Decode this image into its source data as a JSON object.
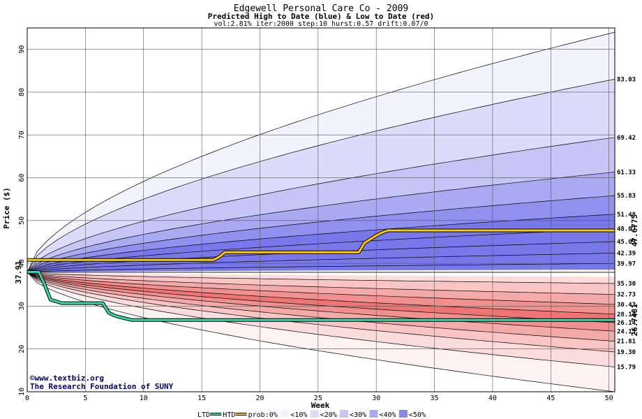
{
  "colors": {
    "blue_outer": "#f3f3fd",
    "blue_bands": [
      "#dcdcfa",
      "#c5c5f6",
      "#aaaaf2",
      "#9090ee",
      "#7878ea"
    ],
    "red_outer": "#fdf1f1",
    "red_bands": [
      "#fbdcdc",
      "#f8c4c4",
      "#f5aaaa",
      "#f29090",
      "#ef7474"
    ],
    "grid": "#555555",
    "htd_line": "#ffcc00",
    "ltd_line": "#33ddaa",
    "current_label": "#006600",
    "htd_label": "#8a6a00",
    "ltd_label": "#1aa37a",
    "credit": "#000066"
  },
  "chart_data": {
    "type": "area",
    "title": "Edgewell Personal Care Co - 2009",
    "subtitle": "Predicted High to Date (blue) &  Low to Date (red)",
    "params": "vol:2.81% iter:2000 step:10 hurst:0.57 drift:0.07/0",
    "xlabel": "Week",
    "ylabel": "Price ($)",
    "xlim": [
      0,
      50.5
    ],
    "ylim": [
      10,
      95
    ],
    "x_ticks": [
      0,
      5,
      10,
      15,
      20,
      25,
      30,
      35,
      40,
      45,
      50
    ],
    "y_ticks": [
      10,
      20,
      30,
      40,
      50,
      60,
      70,
      80,
      90
    ],
    "grid": true,
    "start_price": 37.91,
    "start_label": "37.91",
    "high_curves": [
      {
        "end": 94.0,
        "label": ""
      },
      {
        "end": 83.03,
        "label": "83.03"
      },
      {
        "end": 69.42,
        "label": "69.42"
      },
      {
        "end": 61.33,
        "label": "61.33"
      },
      {
        "end": 55.83,
        "label": "55.83"
      },
      {
        "end": 51.48,
        "label": "51.48"
      },
      {
        "end": 48.07,
        "label": "48.07"
      },
      {
        "end": 45.09,
        "label": "45.09"
      },
      {
        "end": 42.39,
        "label": "42.39"
      },
      {
        "end": 39.97,
        "label": "39.97"
      }
    ],
    "low_curves": [
      {
        "end": 35.3,
        "label": "35.30"
      },
      {
        "end": 32.73,
        "label": "32.73"
      },
      {
        "end": 30.43,
        "label": "30.43"
      },
      {
        "end": 28.14,
        "label": "28.14"
      },
      {
        "end": 26.14,
        "label": "26.14"
      },
      {
        "end": 24.15,
        "label": "24.15"
      },
      {
        "end": 21.81,
        "label": "21.81"
      },
      {
        "end": 19.3,
        "label": "19.30"
      },
      {
        "end": 15.79,
        "label": "15.79"
      },
      {
        "end": 10.0,
        "label": ""
      }
    ],
    "htd_series": {
      "name": "HTD",
      "end_label": "47.6775",
      "x": [
        0,
        16.0,
        16.5,
        17.0,
        28.5,
        29.0,
        30.0,
        30.5,
        31.0,
        50.5
      ],
      "y": [
        40.8,
        40.8,
        41.5,
        42.6,
        42.6,
        44.8,
        46.5,
        47.2,
        47.68,
        47.68
      ]
    },
    "ltd_series": {
      "name": "LTD",
      "end_label": "26.7481",
      "x": [
        0,
        1.0,
        1.5,
        2.0,
        3.0,
        6.5,
        7.0,
        7.5,
        8.0,
        9.0,
        50.5
      ],
      "y": [
        38.0,
        38.0,
        35.0,
        31.5,
        30.7,
        30.7,
        28.5,
        27.8,
        27.4,
        26.75,
        26.75
      ]
    },
    "legend": [
      {
        "label": "LTD",
        "color": "#33ddaa",
        "kind": "line"
      },
      {
        "label": "HTD",
        "color": "#ffcc00",
        "kind": "line"
      },
      {
        "label": "prob:0%",
        "color": "",
        "kind": "text"
      },
      {
        "label": "<10%",
        "color": "#f3f3fd",
        "kind": "swatch"
      },
      {
        "label": "<20%",
        "color": "#dcdcfa",
        "kind": "swatch"
      },
      {
        "label": "<30%",
        "color": "#c5c5f6",
        "kind": "swatch"
      },
      {
        "label": "<40%",
        "color": "#aaaaf2",
        "kind": "swatch"
      },
      {
        "label": "<50%",
        "color": "#8888ec",
        "kind": "swatch"
      }
    ]
  },
  "credit": {
    "line1": "©www.textbiz.org",
    "line2": "The Research Foundation of SUNY"
  }
}
